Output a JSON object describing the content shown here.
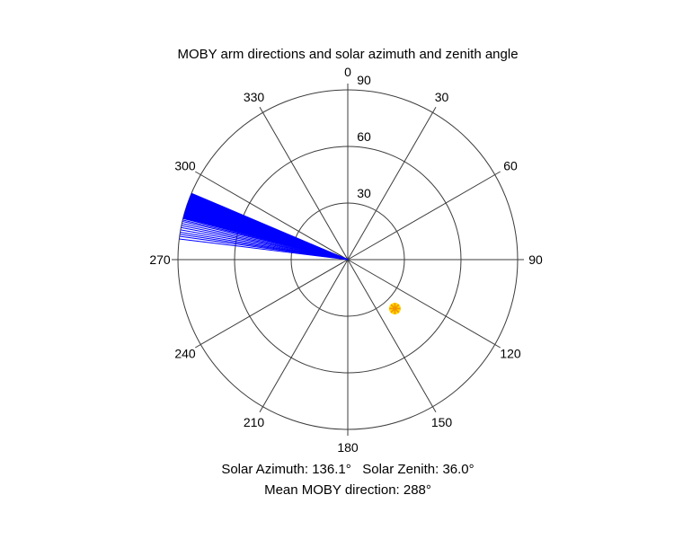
{
  "title": "MOBY arm directions and solar azimuth and zenith angle",
  "footer": {
    "line1": "Solar Azimuth: 136.1°   Solar Zenith: 36.0°",
    "line2": "Mean MOBY direction: 288°"
  },
  "chart_data": {
    "type": "line",
    "projection": "polar",
    "title": "MOBY arm directions and solar azimuth and zenith angle",
    "angle_ticks_deg": [
      0,
      30,
      60,
      90,
      120,
      150,
      180,
      210,
      240,
      270,
      300,
      330
    ],
    "angle_zero_position": "top",
    "angle_direction": "clockwise",
    "radial_ticks_deg": [
      30,
      60,
      90
    ],
    "rmax": 90,
    "grid_color": "#3c3c3c",
    "text_color": "#000000",
    "arm_color": "#0000ff",
    "arm_length": 90,
    "mean_moby_direction_deg": 288,
    "arm_directions_deg": [
      277.0,
      277.9,
      278.6,
      279.3,
      280.1,
      280.9,
      281.6,
      282.3,
      283.0,
      283.5,
      284.0,
      284.18,
      284.36,
      284.54,
      284.72,
      284.9,
      285.08,
      285.26,
      285.44,
      285.62,
      285.8,
      285.98,
      286.16,
      286.34,
      286.52,
      286.7,
      286.88,
      287.06,
      287.24,
      287.42,
      287.6,
      287.78,
      287.96,
      288.14,
      288.32,
      288.5,
      288.68,
      288.86,
      289.04,
      289.22,
      289.4,
      289.58,
      289.76,
      289.94,
      290.12,
      290.3,
      290.48,
      290.66,
      290.84,
      291.02,
      291.2,
      291.38,
      291.56,
      291.74,
      291.92,
      292.1,
      292.28,
      292.46,
      292.64,
      292.82,
      293.0
    ],
    "solar": {
      "azimuth_deg": 136.1,
      "zenith_deg": 36.0,
      "marker": "sun-asterisk",
      "marker_face_color": "#ffd800",
      "marker_edge_color": "#f29500"
    }
  }
}
